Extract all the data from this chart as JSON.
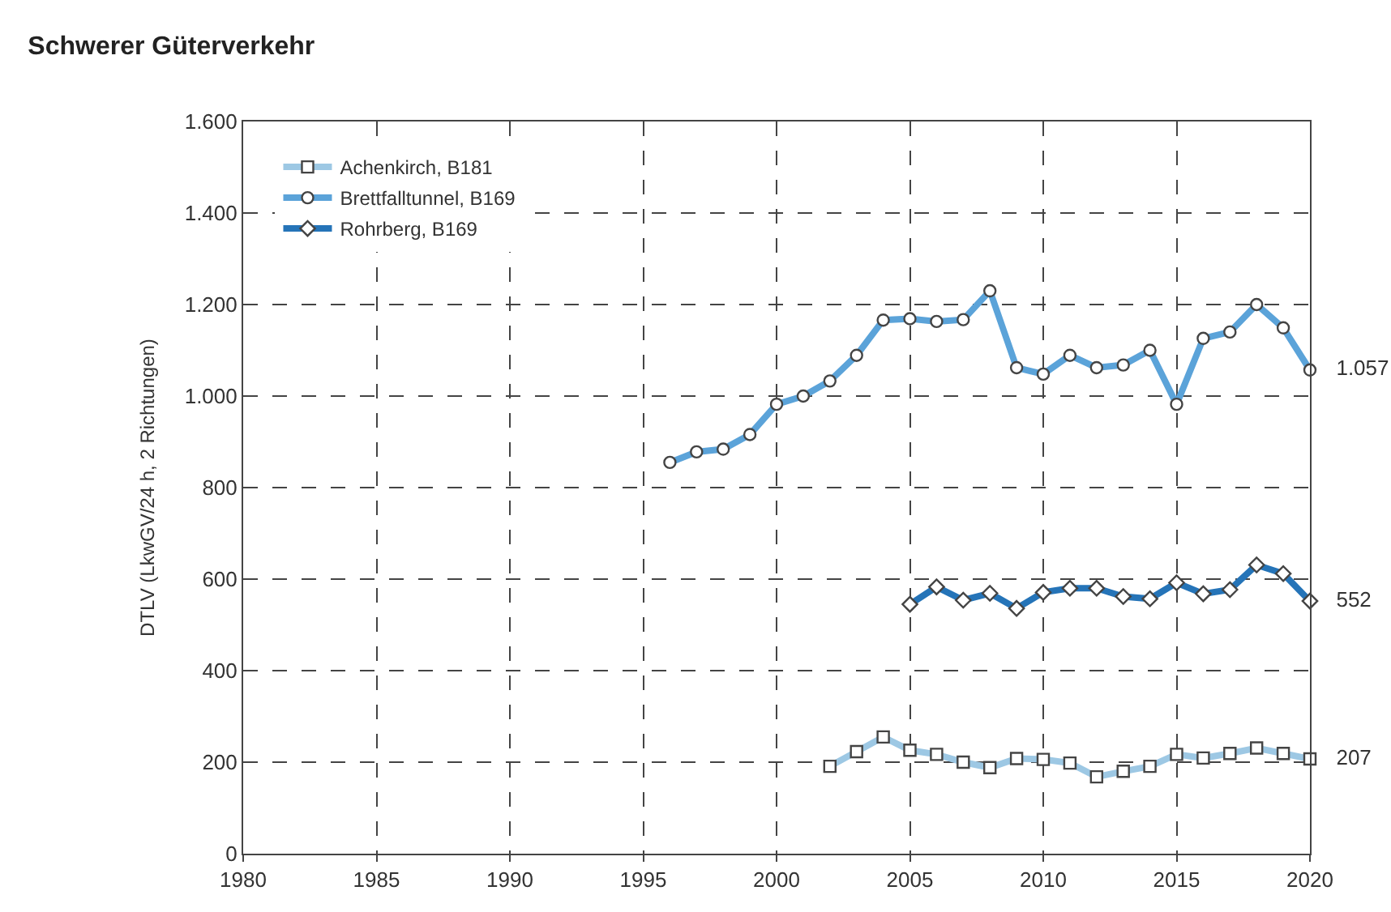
{
  "chart_data": {
    "type": "line",
    "title": "Schwerer Güterverkehr",
    "ylabel": "DTLV (LkwGV/24 h, 2 Richtungen)",
    "xlim": [
      1980,
      2020
    ],
    "xticks": [
      1980,
      1985,
      1990,
      1995,
      2000,
      2005,
      2010,
      2015,
      2020
    ],
    "ylim": [
      0,
      1600
    ],
    "yticks": [
      0,
      200,
      400,
      600,
      800,
      {
        "value": 1000,
        "label": "1.000"
      },
      {
        "value": 1200,
        "label": "1.200"
      },
      {
        "value": 1400,
        "label": "1.400"
      },
      {
        "value": 1600,
        "label": "1.600"
      }
    ],
    "grid": true,
    "legend": "top left",
    "line_style": "solid",
    "series": [
      {
        "name": "Achenkirch, B181",
        "color": "#9dc8e4",
        "marker": "square",
        "x": [
          2002,
          2003,
          2004,
          2005,
          2006,
          2007,
          2008,
          2009,
          2010,
          2011,
          2012,
          2013,
          2014,
          2015,
          2016,
          2017,
          2018,
          2019,
          2020
        ],
        "values": [
          191,
          223,
          255,
          226,
          217,
          200,
          188,
          208,
          206,
          198,
          168,
          180,
          191,
          217,
          209,
          219,
          231,
          219,
          207
        ],
        "value_labels": [
          null,
          null,
          null,
          null,
          null,
          null,
          null,
          null,
          null,
          null,
          null,
          null,
          null,
          null,
          null,
          null,
          null,
          null,
          "207"
        ]
      },
      {
        "name": "Brettfalltunnel, B169",
        "color": "#5ba3d9",
        "marker": "circle",
        "x": [
          1996,
          1997,
          1998,
          1999,
          2000,
          2001,
          2002,
          2003,
          2004,
          2005,
          2006,
          2007,
          2008,
          2009,
          2010,
          2011,
          2012,
          2013,
          2014,
          2015,
          2016,
          2017,
          2018,
          2019,
          2020
        ],
        "values": [
          855,
          878,
          884,
          916,
          982,
          1000,
          1033,
          1089,
          1166,
          1169,
          1163,
          1167,
          1230,
          1062,
          1048,
          1089,
          1062,
          1068,
          1100,
          982,
          1126,
          1140,
          1200,
          1149,
          1057
        ],
        "value_labels": [
          null,
          null,
          null,
          null,
          null,
          null,
          null,
          null,
          null,
          null,
          null,
          null,
          null,
          null,
          null,
          null,
          null,
          null,
          null,
          null,
          null,
          null,
          null,
          null,
          "1.057"
        ]
      },
      {
        "name": "Rohrberg, B169",
        "color": "#2574b8",
        "marker": "diamond",
        "x": [
          2005,
          2006,
          2007,
          2008,
          2009,
          2010,
          2011,
          2012,
          2013,
          2014,
          2015,
          2016,
          2017,
          2018,
          2019,
          2020
        ],
        "values": [
          545,
          583,
          554,
          569,
          536,
          571,
          580,
          580,
          562,
          557,
          592,
          568,
          577,
          631,
          612,
          552
        ],
        "value_labels": [
          null,
          null,
          null,
          null,
          null,
          null,
          null,
          null,
          null,
          null,
          null,
          null,
          null,
          null,
          null,
          "552"
        ]
      }
    ]
  }
}
